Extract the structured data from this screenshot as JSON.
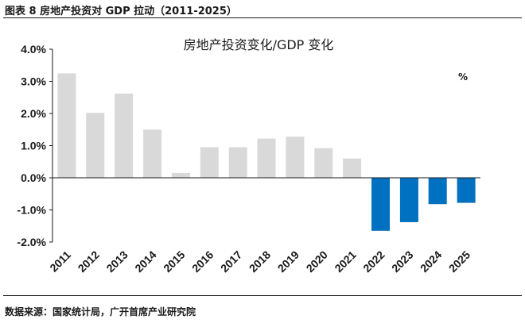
{
  "figure": {
    "caption": "图表 8 房地产投资对 GDP 拉动（2011-2025）",
    "source": "数据来源：国家统计局，广开首席产业研究院"
  },
  "colors": {
    "positive": "#d9d9d9",
    "negative": "#0070c0",
    "axis": "#1a1a1a"
  },
  "chart_data": {
    "type": "bar",
    "title": "房地产投资变化/GDP 变化",
    "unit": "%",
    "categories": [
      "2011",
      "2012",
      "2013",
      "2014",
      "2015",
      "2016",
      "2017",
      "2018",
      "2019",
      "2020",
      "2021",
      "2022",
      "2023",
      "2024",
      "2025"
    ],
    "values": [
      3.25,
      2.02,
      2.62,
      1.5,
      0.15,
      0.95,
      0.95,
      1.22,
      1.28,
      0.92,
      0.6,
      -1.65,
      -1.38,
      -0.82,
      -0.78
    ],
    "ylim": [
      -2.0,
      4.0
    ],
    "yticks": [
      4.0,
      3.0,
      2.0,
      1.0,
      0.0,
      -1.0,
      -2.0
    ],
    "ytick_labels": [
      "4.0%",
      "3.0%",
      "2.0%",
      "1.0%",
      "0.0%",
      "-1.0%",
      "-2.0%"
    ],
    "grid": false,
    "legend": "none"
  }
}
